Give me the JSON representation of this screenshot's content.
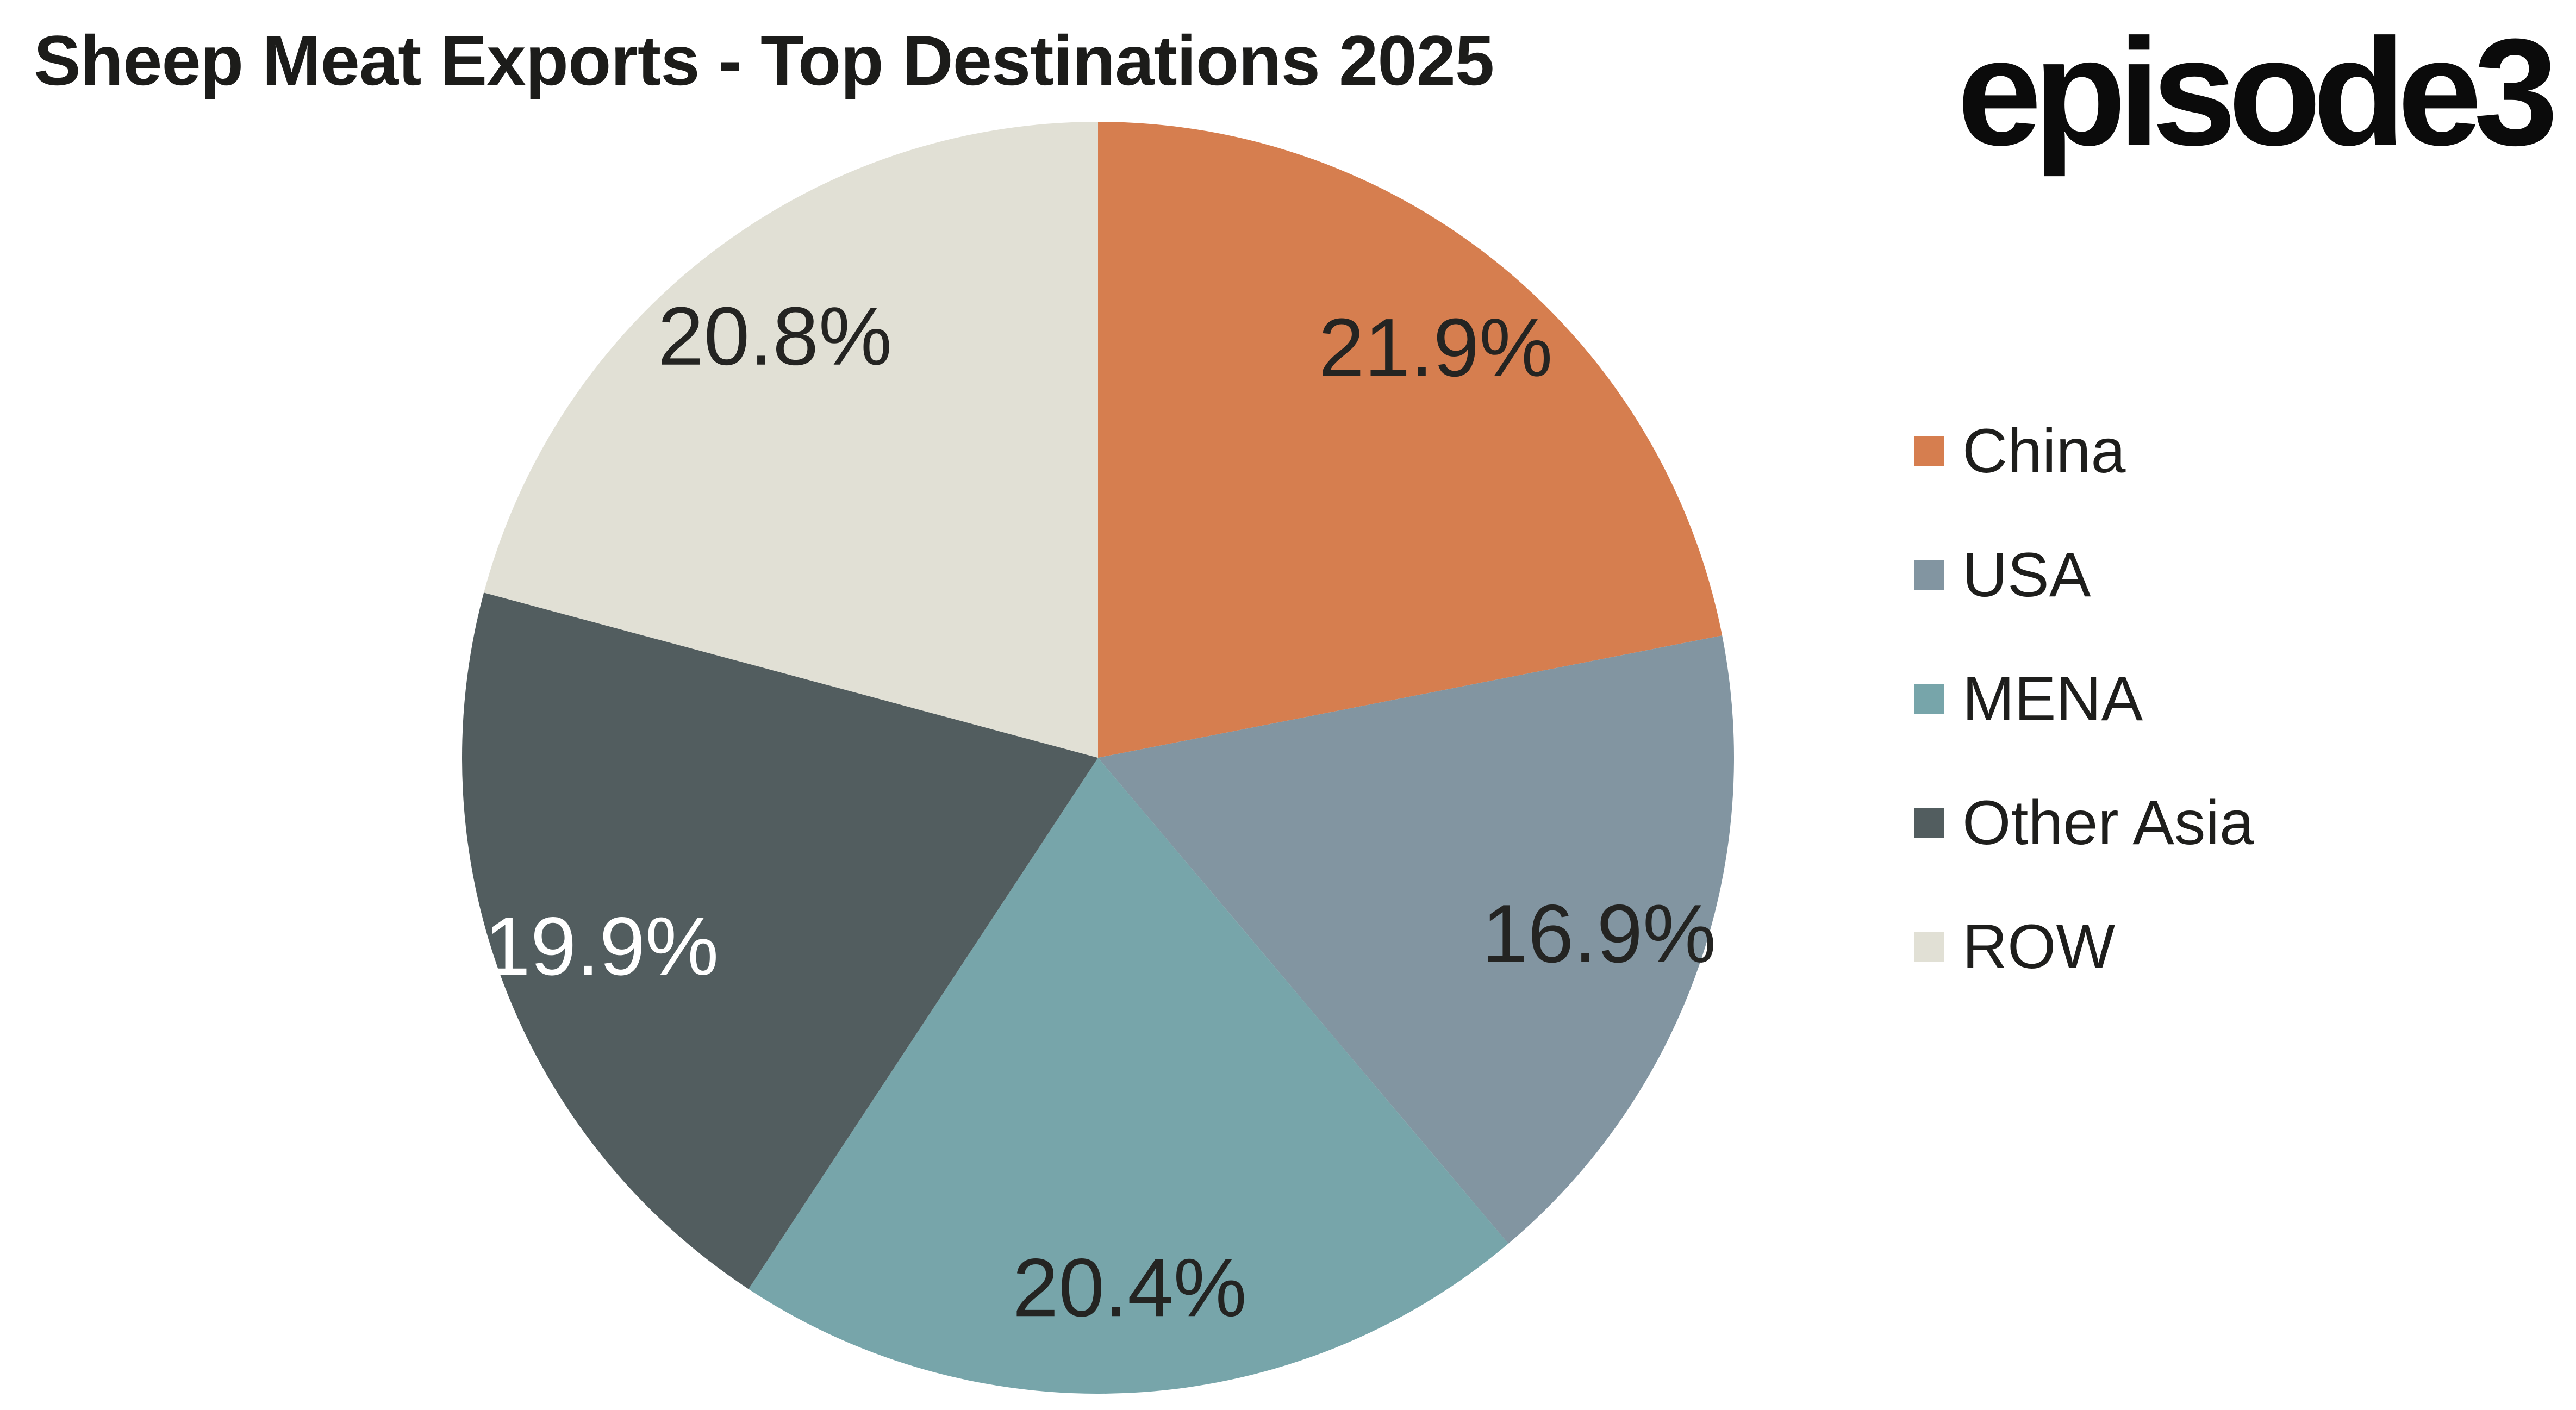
{
  "header": {
    "title": "Sheep Meat Exports - Top Destinations 2025",
    "brand_logo_text": "episode3"
  },
  "chart_data": {
    "type": "pie",
    "title": "Sheep Meat Exports - Top Destinations 2025",
    "unit": "%",
    "start_angle_deg": 0,
    "direction": "clockwise",
    "legend_position": "right",
    "label_distance_fraction": 0.835,
    "slices": [
      {
        "label": "China",
        "value": 21.9,
        "display": "21.9%",
        "color": "#D67E4F",
        "label_color": "#242422"
      },
      {
        "label": "USA",
        "value": 16.9,
        "display": "16.9%",
        "color": "#8295A1",
        "label_color": "#242422"
      },
      {
        "label": "MENA",
        "value": 20.4,
        "display": "20.4%",
        "color": "#77A5AA",
        "label_color": "#242422"
      },
      {
        "label": "Other Asia",
        "value": 19.9,
        "display": "19.9%",
        "color": "#525D5F",
        "label_color": "#FFFFFF"
      },
      {
        "label": "ROW",
        "value": 20.8,
        "display": "20.8%",
        "color": "#E1E0D5",
        "label_color": "#242422"
      }
    ]
  },
  "colors": {
    "background": "#FFFFFF",
    "title_text": "#1C1C1A",
    "legend_text": "#1E1E1C"
  }
}
